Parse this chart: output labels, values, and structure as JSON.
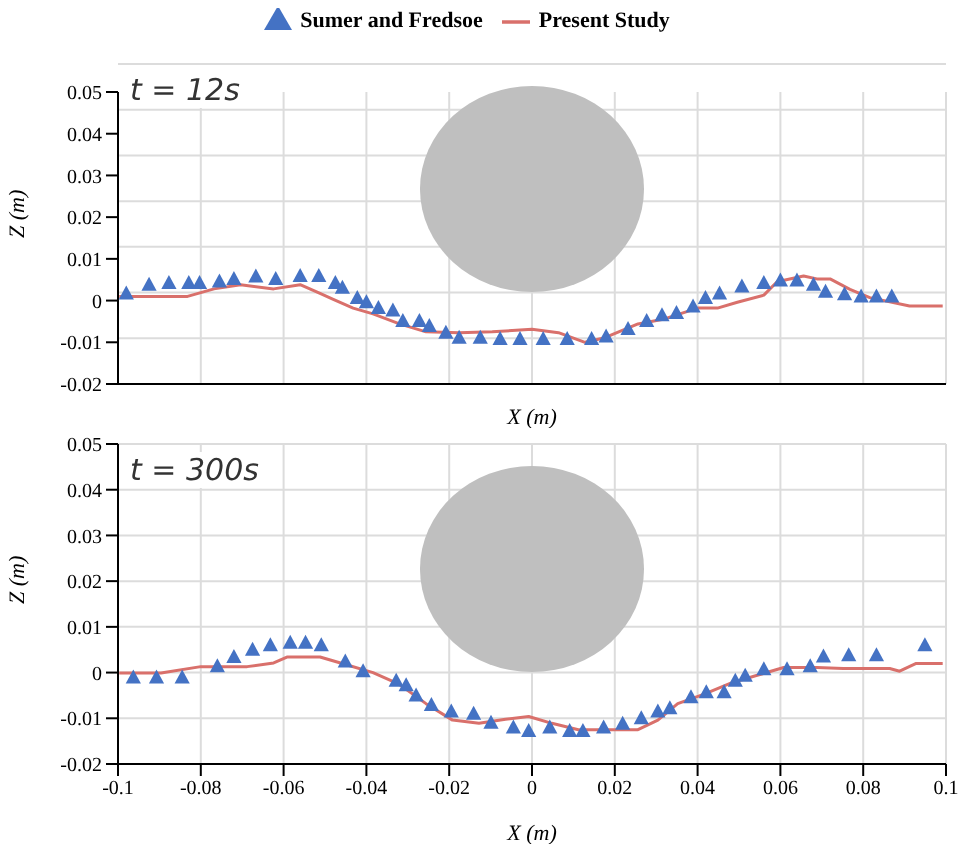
{
  "chart_data": [
    {
      "type": "scatter",
      "xlabel": "X (m)",
      "ylabel": "Z (m)",
      "annotations": [
        "t = 12s"
      ],
      "xlim": [
        -0.1,
        0.1
      ],
      "xticks": [
        -0.1,
        -0.08,
        -0.06,
        -0.04,
        -0.02,
        0,
        0.02,
        0.04,
        0.06,
        0.08,
        0.1
      ],
      "ylim": [
        -0.02,
        0.05
      ],
      "yticks": [
        -0.02,
        -0.01,
        0,
        0.01,
        0.02,
        0.03,
        0.04,
        0.05
      ],
      "tick_labels": "y",
      "grid": true,
      "legend": "top",
      "series": [
        {
          "name": "Sumer and Fredsoe",
          "marker": "triangle",
          "color": "#4472c4",
          "x": [
            -0.098,
            -0.0925,
            -0.0877,
            -0.0829,
            -0.0803,
            -0.0755,
            -0.072,
            -0.0667,
            -0.0619,
            -0.056,
            -0.0515,
            -0.0475,
            -0.0458,
            -0.0422,
            -0.04,
            -0.0371,
            -0.0336,
            -0.0312,
            -0.0272,
            -0.0248,
            -0.0208,
            -0.0176,
            -0.0125,
            -0.0077,
            -0.0029,
            0.0027,
            0.0085,
            0.0144,
            0.0179,
            0.0232,
            0.0277,
            0.0314,
            0.0349,
            0.0389,
            0.0419,
            0.0453,
            0.0507,
            0.056,
            0.06,
            0.064,
            0.068,
            0.0709,
            0.0755,
            0.0795,
            0.0832,
            0.0869
          ],
          "values": [
            0.0017,
            0.0038,
            0.0042,
            0.0042,
            0.0042,
            0.0046,
            0.0052,
            0.0058,
            0.0052,
            0.0059,
            0.0059,
            0.0042,
            0.0031,
            0.0006,
            -0.0004,
            -0.0018,
            -0.0024,
            -0.0049,
            -0.0049,
            -0.0061,
            -0.0077,
            -0.0089,
            -0.0089,
            -0.0092,
            -0.0092,
            -0.0092,
            -0.0092,
            -0.0092,
            -0.0086,
            -0.0068,
            -0.0049,
            -0.0035,
            -0.003,
            -0.0014,
            0.0006,
            0.0017,
            0.0034,
            0.0042,
            0.0048,
            0.0048,
            0.0038,
            0.0021,
            0.0015,
            0.001,
            0.001,
            0.001
          ]
        },
        {
          "name": "Present Study",
          "type": "line",
          "marker": "none",
          "color": "#d9706b",
          "x": [
            -0.0997,
            -0.0832,
            -0.0768,
            -0.0704,
            -0.0624,
            -0.056,
            -0.0512,
            -0.048,
            -0.0432,
            -0.0384,
            -0.032,
            -0.0256,
            -0.0176,
            -0.0096,
            -0.0048,
            0,
            0.0064,
            0.0128,
            0.0176,
            0.0256,
            0.032,
            0.04,
            0.0448,
            0.0496,
            0.056,
            0.0592,
            0.0656,
            0.0688,
            0.072,
            0.0768,
            0.0816,
            0.0912,
            0.0992
          ],
          "values": [
            0.001,
            0.001,
            0.0028,
            0.0038,
            0.0028,
            0.0038,
            0.0017,
            0.0003,
            -0.0018,
            -0.0032,
            -0.0056,
            -0.0075,
            -0.0077,
            -0.0075,
            -0.0072,
            -0.0069,
            -0.0077,
            -0.01,
            -0.0089,
            -0.0056,
            -0.0044,
            -0.0018,
            -0.0018,
            -0.0004,
            0.0013,
            0.0045,
            0.0059,
            0.0052,
            0.0052,
            0.0027,
            0.0007,
            -0.0013,
            -0.0013
          ]
        }
      ]
    },
    {
      "type": "scatter",
      "xlabel": "X (m)",
      "ylabel": "Z (m)",
      "annotations": [
        "t = 300s"
      ],
      "xlim": [
        -0.1,
        0.1
      ],
      "xticks": [
        -0.1,
        -0.08,
        -0.06,
        -0.04,
        -0.02,
        0,
        0.02,
        0.04,
        0.06,
        0.08,
        0.1
      ],
      "ylim": [
        -0.02,
        0.05
      ],
      "yticks": [
        -0.02,
        -0.01,
        0,
        0.01,
        0.02,
        0.03,
        0.04,
        0.05
      ],
      "grid": true,
      "series": [
        {
          "marker": "triangle",
          "color": "#4472c4",
          "x": [
            -0.0963,
            -0.0907,
            -0.0845,
            -0.076,
            -0.072,
            -0.0675,
            -0.0632,
            -0.0584,
            -0.0547,
            -0.0509,
            -0.0451,
            -0.0408,
            -0.0328,
            -0.0304,
            -0.028,
            -0.0243,
            -0.0195,
            -0.0141,
            -0.0099,
            -0.0045,
            -0.0008,
            0.0043,
            0.0091,
            0.0123,
            0.0173,
            0.0219,
            0.0264,
            0.0304,
            0.0333,
            0.0384,
            0.0421,
            0.0464,
            0.0491,
            0.0515,
            0.056,
            0.0616,
            0.0672,
            0.0704,
            0.0765,
            0.0832,
            0.0949
          ],
          "values": [
            -0.0011,
            -0.0011,
            -0.0011,
            0.0014,
            0.0034,
            0.005,
            0.006,
            0.0065,
            0.0065,
            0.006,
            0.0024,
            0.0003,
            -0.0018,
            -0.0028,
            -0.005,
            -0.0071,
            -0.0085,
            -0.009,
            -0.011,
            -0.012,
            -0.0128,
            -0.012,
            -0.0128,
            -0.0128,
            -0.012,
            -0.0112,
            -0.01,
            -0.0085,
            -0.0078,
            -0.0054,
            -0.0043,
            -0.0043,
            -0.0018,
            -0.0007,
            0.0007,
            0.0007,
            0.0014,
            0.0035,
            0.0038,
            0.0038,
            0.006
          ]
        },
        {
          "type": "line",
          "marker": "none",
          "color": "#d9706b",
          "x": [
            -0.0997,
            -0.0896,
            -0.08,
            -0.0688,
            -0.0624,
            -0.0592,
            -0.0512,
            -0.0448,
            -0.0384,
            -0.032,
            -0.0256,
            -0.0192,
            -0.0128,
            -0.0064,
            -0.0008,
            0.0048,
            0.0112,
            0.016,
            0.0256,
            0.0304,
            0.0352,
            0.0416,
            0.048,
            0.0544,
            0.0608,
            0.0688,
            0.0752,
            0.0864,
            0.0888,
            0.0928,
            0.0992
          ],
          "values": [
            -0.0001,
            -0.0001,
            0.0013,
            0.0013,
            0.0021,
            0.0034,
            0.0034,
            0.0017,
            0,
            -0.0026,
            -0.0068,
            -0.0104,
            -0.0111,
            -0.0102,
            -0.0096,
            -0.0111,
            -0.0125,
            -0.0125,
            -0.0125,
            -0.0104,
            -0.0068,
            -0.0047,
            -0.0023,
            -0.0006,
            0.0011,
            0.0011,
            0.0009,
            0.0009,
            0.0003,
            0.002,
            0.002
          ]
        }
      ]
    }
  ]
}
